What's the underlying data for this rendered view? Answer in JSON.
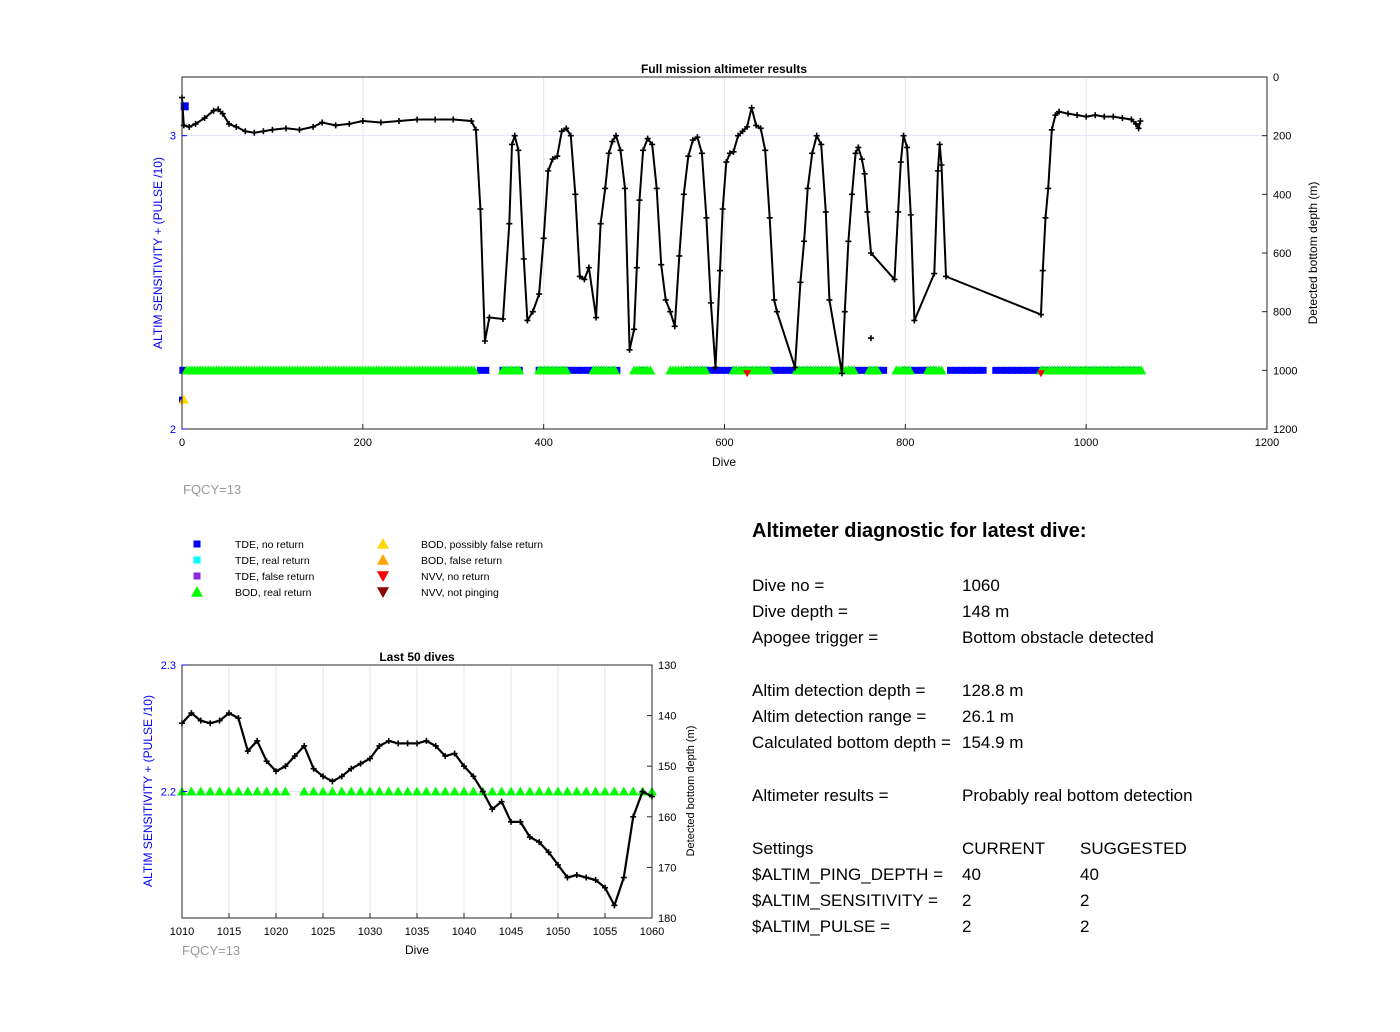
{
  "colors": {
    "axis_left": "#0000ff",
    "track": "#000000",
    "tde_no_return": "#0000ff",
    "tde_real_return": "#00ffff",
    "tde_false_return": "#8a2be2",
    "bod_real_return": "#00ff00",
    "bod_possibly_false": "#ffd700",
    "bod_false": "#ffa500",
    "nvv_no_return": "#ff0000",
    "nvv_not_pinging": "#8b0000",
    "fqcy": "#999999",
    "grid": "#e6e6e6"
  },
  "chart_data": [
    {
      "type": "line",
      "title": "Full mission altimeter results",
      "xlabel": "Dive",
      "ylabel_left": "ALTIM SENSITIVITY + (PULSE /10)",
      "ylabel_right": "Detected bottom depth (m)",
      "xlim": [
        0,
        1200
      ],
      "ylim_left": [
        2,
        3.2
      ],
      "ylim_right_reversed": [
        0,
        1200
      ],
      "xticks": [
        "0",
        "200",
        "400",
        "600",
        "800",
        "1000",
        "1200"
      ],
      "yticks_left": [
        "2",
        "3"
      ],
      "yticks_right": [
        "0",
        "200",
        "400",
        "600",
        "800",
        "1000",
        "1200"
      ],
      "grid": true,
      "footnote": "FQCY=13",
      "series": [
        {
          "kind": "depth",
          "points": [
            [
              0,
              70
            ],
            [
              2,
              165
            ],
            [
              8,
              170
            ],
            [
              15,
              160
            ],
            [
              25,
              140
            ],
            [
              35,
              115
            ],
            [
              40,
              110
            ],
            [
              45,
              125
            ],
            [
              52,
              160
            ],
            [
              60,
              170
            ],
            [
              70,
              185
            ],
            [
              80,
              190
            ],
            [
              90,
              185
            ],
            [
              100,
              180
            ],
            [
              115,
              175
            ],
            [
              130,
              180
            ],
            [
              145,
              170
            ],
            [
              155,
              155
            ],
            [
              170,
              165
            ],
            [
              185,
              160
            ],
            [
              200,
              150
            ],
            [
              220,
              155
            ],
            [
              240,
              150
            ],
            [
              260,
              145
            ],
            [
              280,
              145
            ],
            [
              300,
              145
            ],
            [
              320,
              150
            ],
            [
              325,
              180
            ],
            [
              330,
              450
            ],
            [
              335,
              900
            ],
            [
              340,
              820
            ],
            [
              355,
              825
            ],
            [
              362,
              500
            ],
            [
              365,
              230
            ],
            [
              368,
              200
            ],
            [
              372,
              250
            ],
            [
              378,
              620
            ],
            [
              382,
              830
            ],
            [
              388,
              800
            ],
            [
              395,
              740
            ],
            [
              400,
              550
            ],
            [
              405,
              320
            ],
            [
              410,
              280
            ],
            [
              415,
              270
            ],
            [
              420,
              185
            ],
            [
              425,
              175
            ],
            [
              430,
              200
            ],
            [
              435,
              400
            ],
            [
              440,
              680
            ],
            [
              445,
              690
            ],
            [
              450,
              650
            ],
            [
              458,
              820
            ],
            [
              463,
              500
            ],
            [
              468,
              380
            ],
            [
              472,
              260
            ],
            [
              476,
              220
            ],
            [
              480,
              200
            ],
            [
              485,
              250
            ],
            [
              490,
              380
            ],
            [
              495,
              930
            ],
            [
              500,
              860
            ],
            [
              503,
              650
            ],
            [
              506,
              420
            ],
            [
              510,
              250
            ],
            [
              515,
              210
            ],
            [
              520,
              230
            ],
            [
              525,
              380
            ],
            [
              530,
              640
            ],
            [
              535,
              760
            ],
            [
              540,
              800
            ],
            [
              545,
              850
            ],
            [
              550,
              610
            ],
            [
              555,
              400
            ],
            [
              560,
              270
            ],
            [
              565,
              215
            ],
            [
              570,
              205
            ],
            [
              575,
              260
            ],
            [
              580,
              480
            ],
            [
              585,
              770
            ],
            [
              590,
              990
            ],
            [
              595,
              660
            ],
            [
              598,
              450
            ],
            [
              602,
              290
            ],
            [
              606,
              260
            ],
            [
              610,
              255
            ],
            [
              615,
              200
            ],
            [
              620,
              185
            ],
            [
              625,
              170
            ],
            [
              630,
              105
            ],
            [
              635,
              165
            ],
            [
              640,
              175
            ],
            [
              645,
              250
            ],
            [
              650,
              480
            ],
            [
              655,
              760
            ],
            [
              658,
              800
            ],
            [
              678,
              990
            ],
            [
              684,
              700
            ],
            [
              688,
              560
            ],
            [
              692,
              380
            ],
            [
              697,
              260
            ],
            [
              702,
              200
            ],
            [
              707,
              230
            ],
            [
              712,
              460
            ],
            [
              716,
              760
            ],
            [
              730,
              1010
            ],
            [
              733,
              800
            ],
            [
              737,
              560
            ],
            [
              741,
              400
            ],
            [
              745,
              260
            ],
            [
              748,
              240
            ],
            [
              752,
              280
            ],
            [
              755,
              330
            ],
            [
              758,
              460
            ],
            [
              762,
              600
            ],
            [
              788,
              690
            ],
            [
              792,
              460
            ],
            [
              795,
              290
            ],
            [
              798,
              200
            ],
            [
              802,
              240
            ],
            [
              806,
              470
            ],
            [
              810,
              830
            ],
            [
              832,
              670
            ],
            [
              836,
              320
            ],
            [
              838,
              230
            ],
            [
              840,
              300
            ],
            [
              845,
              680
            ],
            [
              950,
              810
            ],
            [
              952,
              660
            ],
            [
              955,
              480
            ],
            [
              958,
              380
            ],
            [
              962,
              180
            ],
            [
              966,
              130
            ],
            [
              970,
              118
            ],
            [
              980,
              125
            ],
            [
              990,
              130
            ],
            [
              1000,
              135
            ],
            [
              1010,
              130
            ],
            [
              1020,
              135
            ],
            [
              1030,
              135
            ],
            [
              1040,
              140
            ],
            [
              1050,
              145
            ],
            [
              1055,
              160
            ],
            [
              1058,
              175
            ],
            [
              1060,
              150
            ]
          ],
          "isolated_points": [
            [
              762,
              890
            ]
          ]
        },
        {
          "kind": "markers",
          "description_from_legend": "status markers near value 2.2 and below",
          "blue_runs": [
            [
              1,
              2
            ],
            [
              330,
              340
            ],
            [
              355,
              375
            ],
            [
              395,
              470
            ],
            [
              475,
              485
            ],
            [
              510,
              515
            ],
            [
              560,
              610
            ],
            [
              620,
              720
            ],
            [
              740,
              780
            ],
            [
              800,
              830
            ],
            [
              850,
              890
            ],
            [
              900,
              1060
            ]
          ],
          "green_runs": [
            [
              5,
              325
            ],
            [
              355,
              375
            ],
            [
              395,
              425
            ],
            [
              455,
              480
            ],
            [
              500,
              520
            ],
            [
              540,
              580
            ],
            [
              610,
              650
            ],
            [
              680,
              745
            ],
            [
              760,
              770
            ],
            [
              790,
              805
            ],
            [
              825,
              840
            ],
            [
              950,
              1062
            ]
          ],
          "yellow_points": [
            [
              2,
              2.1
            ]
          ],
          "red_points": [
            [
              625,
              2.19
            ],
            [
              950,
              2.19
            ]
          ],
          "blue_top_points": [
            [
              3,
              3.1
            ]
          ],
          "blue_low_points": [
            [
              0,
              2.1
            ]
          ]
        }
      ]
    },
    {
      "type": "line",
      "title": "Last 50 dives",
      "xlabel": "Dive",
      "ylabel_left": "ALTIM SENSITIVITY + (PULSE /10)",
      "ylabel_right": "Detected bottom depth (m)",
      "xlim": [
        1010,
        1060
      ],
      "ylim_left": [
        2.1,
        2.3
      ],
      "ylim_right_reversed": [
        130,
        180
      ],
      "xticks": [
        "1010",
        "1015",
        "1020",
        "1025",
        "1030",
        "1035",
        "1040",
        "1045",
        "1050",
        "1055",
        "1060"
      ],
      "yticks_left": [
        "2.2",
        "2.3"
      ],
      "yticks_right": [
        "130",
        "140",
        "150",
        "160",
        "170",
        "180"
      ],
      "grid": true,
      "footnote": "FQCY=13",
      "series": [
        {
          "kind": "depth",
          "x": [
            1010,
            1011,
            1012,
            1013,
            1014,
            1015,
            1016,
            1017,
            1018,
            1019,
            1020,
            1021,
            1022,
            1023,
            1024,
            1025,
            1026,
            1027,
            1028,
            1029,
            1030,
            1031,
            1032,
            1033,
            1034,
            1035,
            1036,
            1037,
            1038,
            1039,
            1040,
            1041,
            1042,
            1043,
            1044,
            1045,
            1046,
            1047,
            1048,
            1049,
            1050,
            1051,
            1052,
            1053,
            1054,
            1055,
            1056,
            1057,
            1058,
            1059,
            1060
          ],
          "y": [
            141.5,
            139.5,
            141,
            141.5,
            141,
            139.5,
            140.5,
            147,
            145,
            149,
            151,
            150,
            148,
            146,
            150.5,
            152,
            153,
            152,
            150.5,
            149.5,
            148.5,
            146,
            145,
            145.5,
            145.5,
            145.5,
            145,
            146,
            148,
            147.5,
            150,
            152,
            155,
            158.5,
            157,
            161,
            161,
            164,
            165,
            167,
            169.5,
            172,
            171.5,
            172,
            172.5,
            174,
            177.5,
            172,
            160,
            155,
            156
          ]
        },
        {
          "kind": "markers",
          "green_x": [
            1010,
            1011,
            1012,
            1013,
            1014,
            1015,
            1016,
            1017,
            1018,
            1019,
            1020,
            1021,
            1023,
            1024,
            1025,
            1026,
            1027,
            1028,
            1029,
            1030,
            1031,
            1032,
            1033,
            1034,
            1035,
            1036,
            1037,
            1038,
            1039,
            1040,
            1041,
            1042,
            1043,
            1044,
            1045,
            1046,
            1047,
            1048,
            1049,
            1050,
            1051,
            1052,
            1053,
            1054,
            1055,
            1056,
            1057,
            1058,
            1059,
            1060
          ],
          "green_y": 2.2
        }
      ]
    }
  ],
  "legend": [
    {
      "label": "TDE, no return",
      "marker": "square",
      "color": "#0000ff"
    },
    {
      "label": "TDE, real return",
      "marker": "square",
      "color": "#00ffff"
    },
    {
      "label": "TDE, false return",
      "marker": "square",
      "color": "#8a2be2"
    },
    {
      "label": "BOD, real return",
      "marker": "triangle-up",
      "color": "#00ff00"
    },
    {
      "label": "BOD, possibly false return",
      "marker": "triangle-up",
      "color": "#ffd700"
    },
    {
      "label": "BOD, false return",
      "marker": "triangle-up",
      "color": "#ffa500"
    },
    {
      "label": "NVV, no return",
      "marker": "triangle-down",
      "color": "#ff0000"
    },
    {
      "label": "NVV, not pinging",
      "marker": "triangle-down",
      "color": "#8b0000"
    }
  ],
  "diagnostic": {
    "title": "Altimeter diagnostic for latest dive:",
    "dive_no_label": "Dive no =",
    "dive_no_value": "1060",
    "dive_depth_label": "Dive depth =",
    "dive_depth_value": "148 m",
    "apogee_label": "Apogee trigger =",
    "apogee_value": "Bottom obstacle detected",
    "altim_depth_label": "Altim detection depth =",
    "altim_depth_value": "128.8 m",
    "altim_range_label": "Altim detection range =",
    "altim_range_value": "26.1 m",
    "calc_depth_label": "Calculated bottom depth =",
    "calc_depth_value": "154.9 m",
    "results_label": "Altimeter results =",
    "results_value": "Probably real bottom detection",
    "settings_label": "Settings",
    "current_label": "CURRENT",
    "suggested_label": "SUGGESTED",
    "ping_label": "$ALTIM_PING_DEPTH =",
    "ping_current": "40",
    "ping_suggested": "40",
    "sens_label": "$ALTIM_SENSITIVITY =",
    "sens_current": "2",
    "sens_suggested": "2",
    "pulse_label": "$ALTIM_PULSE =",
    "pulse_current": "2",
    "pulse_suggested": "2"
  }
}
